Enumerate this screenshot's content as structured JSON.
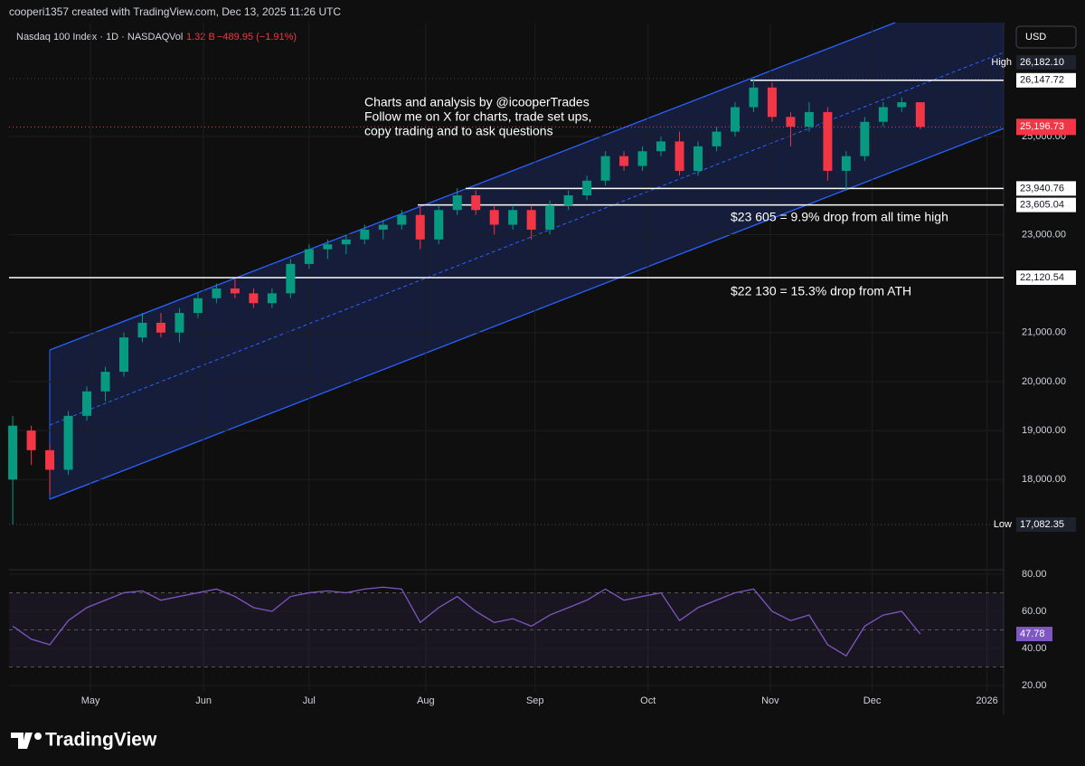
{
  "header": {
    "credit": "cooperi1357 created with TradingView.com, Dec 13, 2025 11:26 UTC",
    "symbol": "Nasdaq 100 Index · 1D · NASDAQ",
    "vol_label": "Vol",
    "vol": "1.32 B",
    "change": "−489.95 (−1.91%)",
    "currency": "USD"
  },
  "brand": "TradingView",
  "chart_data": [
    {
      "type": "candlestick",
      "up_color": "#089981",
      "down_color": "#f23645",
      "open": [
        18000,
        19000,
        18600,
        18200,
        19300,
        19800,
        20200,
        20900,
        21200,
        21000,
        21400,
        21700,
        21900,
        21800,
        21600,
        21800,
        22400,
        22700,
        22800,
        22900,
        23100,
        23200,
        23400,
        22900,
        23500,
        23800,
        23500,
        23200,
        23500,
        23100,
        23600,
        23800,
        24100,
        24600,
        24400,
        24700,
        24900,
        24300,
        24800,
        25100,
        25600,
        26000,
        25400,
        25200,
        25500,
        24300,
        24600,
        25300,
        25600,
        25700
      ],
      "high": [
        19300,
        19100,
        18700,
        19400,
        19900,
        20300,
        21000,
        21400,
        21400,
        21500,
        21800,
        22000,
        22100,
        21900,
        21900,
        22500,
        22800,
        22900,
        23000,
        23200,
        23300,
        23500,
        23600,
        23600,
        23950,
        23900,
        23600,
        23600,
        23600,
        23700,
        23900,
        24200,
        24700,
        24700,
        24800,
        25000,
        25100,
        24900,
        25200,
        25700,
        26182.1,
        26100,
        25500,
        25700,
        25600,
        24700,
        25400,
        25700,
        25800,
        25700
      ],
      "low": [
        17082.35,
        18300,
        17700,
        18100,
        19200,
        19600,
        20100,
        20800,
        20900,
        20800,
        21300,
        21600,
        21700,
        21500,
        21500,
        21700,
        22300,
        22500,
        22600,
        22800,
        22900,
        23100,
        22700,
        22800,
        23400,
        23400,
        23000,
        23100,
        22900,
        23000,
        23500,
        23700,
        24000,
        24300,
        24300,
        24600,
        24200,
        24200,
        24700,
        25000,
        25500,
        25300,
        24800,
        25100,
        24100,
        23900,
        24500,
        25200,
        25500,
        25150
      ],
      "close": [
        19100,
        18600,
        18200,
        19300,
        19800,
        20200,
        20900,
        21200,
        21000,
        21400,
        21700,
        21900,
        21800,
        21600,
        21800,
        22400,
        22700,
        22800,
        22900,
        23100,
        23200,
        23400,
        22900,
        23500,
        23800,
        23500,
        23200,
        23500,
        23100,
        23600,
        23800,
        24100,
        24600,
        24400,
        24700,
        24900,
        24300,
        24800,
        25100,
        25600,
        26000,
        25400,
        25200,
        25500,
        24300,
        24600,
        25300,
        25600,
        25700,
        25196.73
      ],
      "xlim": [
        -0.2,
        53.5
      ],
      "xticks": [
        {
          "value": 4.2,
          "label": "May"
        },
        {
          "value": 10.3,
          "label": "Jun"
        },
        {
          "value": 16.0,
          "label": "Jul"
        },
        {
          "value": 22.3,
          "label": "Aug"
        },
        {
          "value": 28.2,
          "label": "Sep"
        },
        {
          "value": 34.3,
          "label": "Oct"
        },
        {
          "value": 40.9,
          "label": "Nov"
        },
        {
          "value": 46.4,
          "label": "Dec"
        },
        {
          "value": 52.6,
          "label": "2026"
        }
      ],
      "ylim": [
        16160,
        27325
      ],
      "yticks": [
        {
          "value": 18000,
          "label": "18,000.00"
        },
        {
          "value": 19000,
          "label": "19,000.00"
        },
        {
          "value": 20000,
          "label": "20,000.00"
        },
        {
          "value": 21000,
          "label": "21,000.00"
        },
        {
          "value": 23000,
          "label": "23,000.00"
        },
        {
          "value": 25000,
          "label": "25,000.00"
        }
      ],
      "grid": true,
      "levels": [
        {
          "value": 26147.72,
          "label": "26,147.72"
        },
        {
          "value": 23940.76,
          "label": "23,940.76"
        },
        {
          "value": 23605.04,
          "label": "23,605.04"
        },
        {
          "value": 22120.54,
          "label": "22,120.54"
        }
      ],
      "high_mark": {
        "name": "High",
        "value": 26182.1,
        "label": "26,182.10"
      },
      "low_mark": {
        "name": "Low",
        "value": 17082.35,
        "label": "17,082.35"
      },
      "last": {
        "value": 25196.73,
        "label": "25,196.73"
      },
      "annotations": [
        "Charts and analysis by @icooperTrades",
        "Follow me on X for charts, trade set ups,",
        "copy trading and to ask questions",
        "$23 605 = 9.9% drop from all time high",
        "$22 130 = 15.3% drop from ATH"
      ]
    },
    {
      "type": "line",
      "color": "#7e57c2",
      "values": [
        52,
        45,
        42,
        55,
        62,
        66,
        70,
        71,
        66,
        68,
        70,
        72,
        68,
        62,
        60,
        68,
        70,
        71,
        70,
        72,
        73,
        72,
        54,
        62,
        68,
        60,
        54,
        56,
        52,
        58,
        62,
        66,
        72,
        66,
        68,
        70,
        55,
        62,
        66,
        70,
        72,
        60,
        55,
        58,
        42,
        36,
        52,
        58,
        60,
        47.78
      ],
      "ylim": [
        16.6,
        82.4
      ],
      "yticks": [
        {
          "value": 80,
          "label": "80.00"
        },
        {
          "value": 60,
          "label": "60.00"
        },
        {
          "value": 40,
          "label": "40.00"
        },
        {
          "value": 20,
          "label": "20.00"
        }
      ],
      "bands": [
        30,
        50,
        70
      ]
    }
  ]
}
